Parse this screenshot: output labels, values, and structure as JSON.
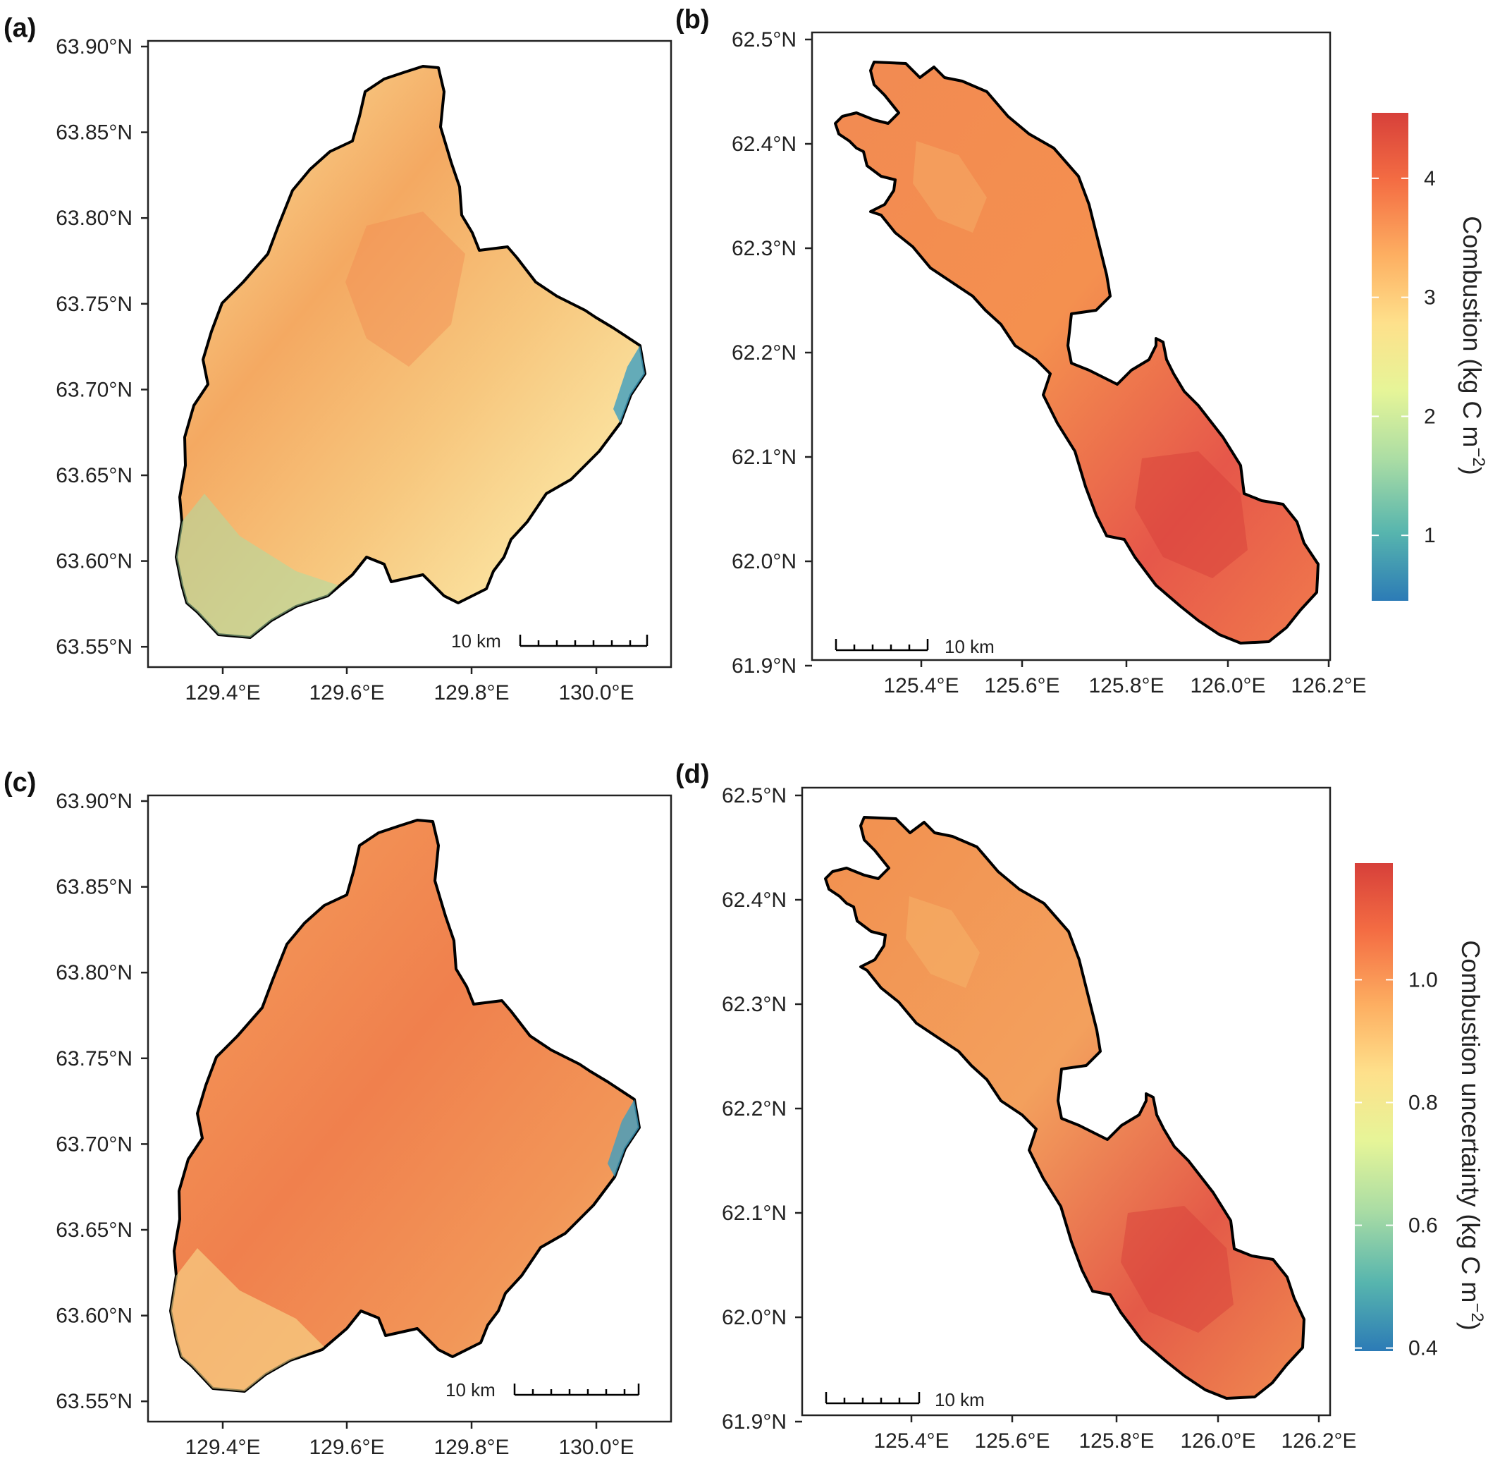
{
  "panels": [
    {
      "label": "(a)",
      "lat_ticks": [
        "63.90°N",
        "63.85°N",
        "63.80°N",
        "63.75°N",
        "63.70°N",
        "63.65°N",
        "63.60°N",
        "63.55°N"
      ],
      "lon_ticks": [
        "129.4°E",
        "129.6°E",
        "129.8°E",
        "130.0°E"
      ],
      "scale_bar": "10 km",
      "fill_colors": [
        "#f3c57a",
        "#f4a65e",
        "#fae9a0",
        "#79c5a4",
        "#3e9fc0"
      ]
    },
    {
      "label": "(b)",
      "lat_ticks": [
        "62.5°N",
        "62.4°N",
        "62.3°N",
        "62.2°N",
        "62.1°N",
        "62.0°N",
        "61.9°N"
      ],
      "lon_ticks": [
        "125.4°E",
        "125.6°E",
        "125.8°E",
        "126.0°E",
        "126.2°E"
      ],
      "scale_bar": "10 km",
      "fill_colors": [
        "#f07c4e",
        "#e2554a",
        "#f6b16a",
        "#fbe39a"
      ]
    },
    {
      "label": "(c)",
      "lat_ticks": [
        "63.90°N",
        "63.85°N",
        "63.80°N",
        "63.75°N",
        "63.70°N",
        "63.65°N",
        "63.60°N",
        "63.55°N"
      ],
      "lon_ticks": [
        "129.4°E",
        "129.6°E",
        "129.8°E",
        "130.0°E"
      ],
      "scale_bar": "10 km",
      "fill_colors": [
        "#f29a5b",
        "#f07a4c",
        "#f9dc8e",
        "#5fb9b0",
        "#3e9fc0"
      ]
    },
    {
      "label": "(d)",
      "lat_ticks": [
        "62.5°N",
        "62.4°N",
        "62.3°N",
        "62.2°N",
        "62.1°N",
        "62.0°N",
        "61.9°N"
      ],
      "lon_ticks": [
        "125.4°E",
        "125.6°E",
        "125.8°E",
        "126.0°E",
        "126.2°E"
      ],
      "scale_bar": "10 km",
      "fill_colors": [
        "#f0804f",
        "#e2554a",
        "#f7b86c",
        "#fbe49b"
      ]
    }
  ],
  "colorbars": [
    {
      "title": "Combustion (kg C m",
      "title_sup": "−2",
      "title_close": ")",
      "ticks": [
        "4",
        "3",
        "2",
        "1"
      ],
      "tick_values": [
        4,
        3,
        2,
        1
      ],
      "range": [
        0.45,
        4.55
      ]
    },
    {
      "title": "Combustion uncertainty (kg C m",
      "title_sup": "−2",
      "title_close": ")",
      "ticks": [
        "1.0",
        "0.8",
        "0.6",
        "0.4"
      ],
      "tick_values": [
        1.0,
        0.8,
        0.6,
        0.4
      ],
      "range": [
        0.395,
        1.19
      ]
    }
  ],
  "palette": [
    "#2c7bb6",
    "#57b5ae",
    "#abdda4",
    "#e6f598",
    "#fee08b",
    "#fdae61",
    "#f46d43",
    "#d7403a"
  ],
  "outline_color": "#000000"
}
